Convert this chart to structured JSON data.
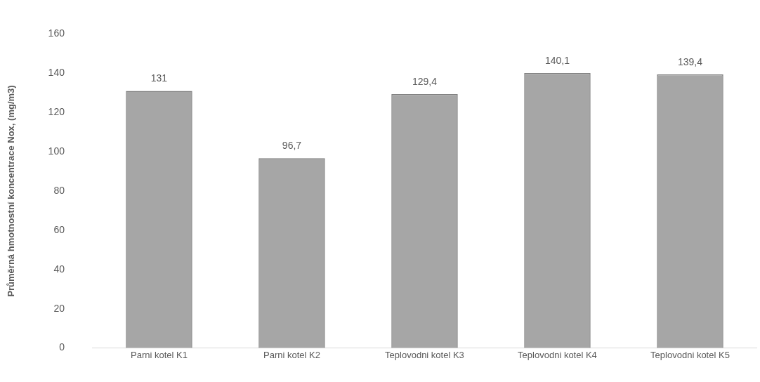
{
  "chart_data": {
    "type": "bar",
    "ylabel": "Průměrná hmotnostní koncentrace Nox, (mg/m3)",
    "categories": [
      "Parni kotel K1",
      "Parni kotel K2",
      "Teplovodni kotel K3",
      "Teplovodni kotel K4",
      "Teplovodni kotel K5"
    ],
    "values": [
      131,
      96.7,
      129.4,
      140.1,
      139.4
    ],
    "value_labels": [
      "131",
      "96,7",
      "129,4",
      "140,1",
      "139,4"
    ],
    "color": "#a6a6a6",
    "ylim": [
      0,
      160
    ],
    "yticks": [
      0,
      20,
      40,
      60,
      80,
      100,
      120,
      140,
      160
    ],
    "grid": false,
    "legend": false
  }
}
